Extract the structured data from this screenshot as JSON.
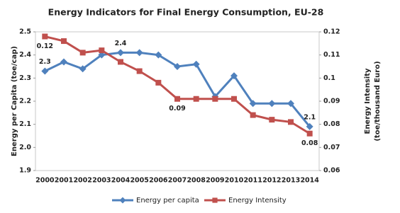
{
  "chart_data": {
    "type": "line",
    "title": "Energy Indicators for Final Energy Consumption, EU-28",
    "ylabel": "Energy per Capita (toe/cap)",
    "y2label": [
      "Energy Intensity",
      "(toe/thousand Euro)"
    ],
    "categories": [
      "2000",
      "2001",
      "2002",
      "2003",
      "2004",
      "2005",
      "2006",
      "2007",
      "2008",
      "2009",
      "2010",
      "2011",
      "2012",
      "2013",
      "2014"
    ],
    "series": [
      {
        "name": "Energy per capita",
        "color": "#4f81bd",
        "marker": "diamond",
        "values": [
          2.33,
          2.37,
          2.34,
          2.4,
          2.41,
          2.41,
          2.4,
          2.35,
          2.36,
          2.22,
          2.31,
          2.19,
          2.19,
          2.19,
          2.09
        ],
        "value_labels": [
          "2.3",
          null,
          null,
          null,
          "2.4",
          null,
          null,
          null,
          null,
          null,
          null,
          null,
          null,
          null,
          "2.1"
        ]
      },
      {
        "name": "Energy Intensity",
        "color": "#c0504d",
        "marker": "square",
        "axis": "y2",
        "values": [
          0.118,
          0.116,
          0.111,
          0.112,
          0.107,
          0.103,
          0.098,
          0.091,
          0.091,
          0.091,
          0.091,
          0.084,
          0.082,
          0.081,
          0.076
        ],
        "value_labels": [
          "0.12",
          null,
          null,
          null,
          null,
          null,
          null,
          "0.09",
          null,
          null,
          null,
          null,
          null,
          null,
          "0.08"
        ]
      }
    ],
    "ylim": [
      1.9,
      2.5
    ],
    "yticks": [
      1.9,
      {
        "value": 2,
        "label": "2.0"
      },
      2.1,
      2.2,
      2.3,
      2.4,
      2.5
    ],
    "y2lim": [
      0.06,
      0.12
    ],
    "y2ticks": [
      0.06,
      0.07,
      0.08,
      0.09,
      0.1,
      0.11,
      0.12
    ],
    "grid": false,
    "legend": "bottom"
  }
}
